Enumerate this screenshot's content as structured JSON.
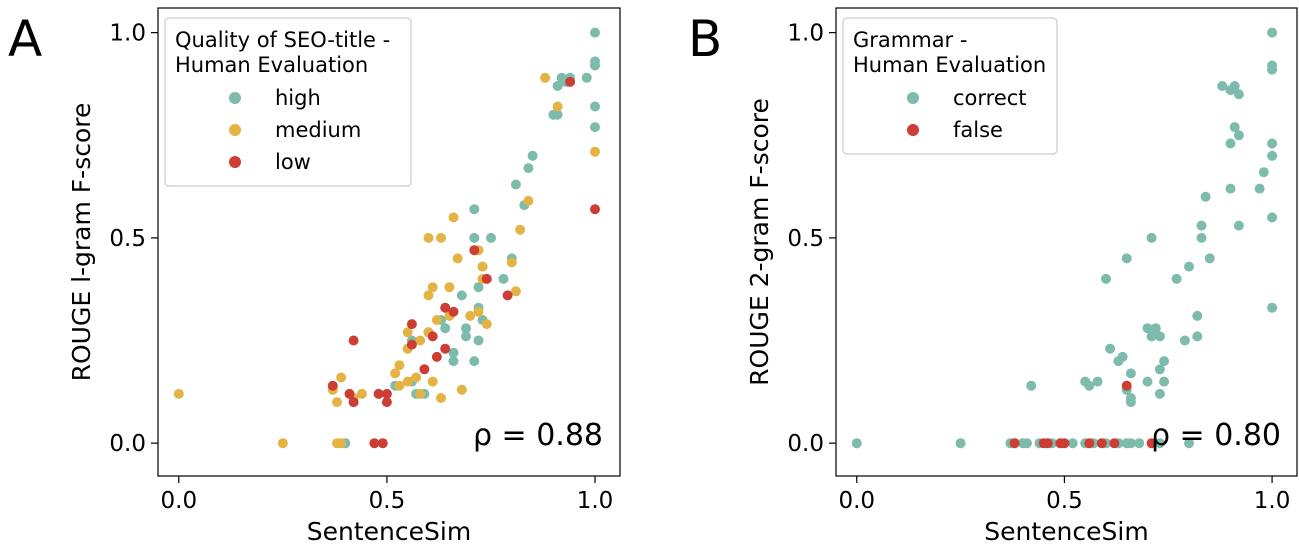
{
  "chart_data": [
    {
      "panel_label": "A",
      "type": "scatter",
      "xlabel": "SentenceSim",
      "ylabel": "ROUGE l-gram F-score",
      "xlim": [
        -0.05,
        1.06
      ],
      "ylim": [
        -0.08,
        1.06
      ],
      "xticks": [
        "0.0",
        "0.5",
        "1.0"
      ],
      "yticks": [
        "0.0",
        "0.5",
        "1.0"
      ],
      "grid": false,
      "legend_title": "Quality of SEO-title -\nHuman Evaluation",
      "legend_position": "top-left",
      "annotation": "ρ = 0.88",
      "series": [
        {
          "name": "high",
          "color": "#7dbbad",
          "points": [
            [
              1.0,
              1.0
            ],
            [
              1.0,
              0.93
            ],
            [
              1.0,
              0.92
            ],
            [
              0.98,
              0.89
            ],
            [
              0.94,
              0.89
            ],
            [
              0.93,
              0.88
            ],
            [
              0.92,
              0.89
            ],
            [
              0.91,
              0.87
            ],
            [
              1.0,
              0.82
            ],
            [
              0.9,
              0.8
            ],
            [
              0.91,
              0.8
            ],
            [
              1.0,
              0.77
            ],
            [
              0.85,
              0.7
            ],
            [
              0.84,
              0.67
            ],
            [
              0.81,
              0.63
            ],
            [
              0.83,
              0.58
            ],
            [
              0.71,
              0.57
            ],
            [
              0.71,
              0.5
            ],
            [
              0.75,
              0.5
            ],
            [
              0.8,
              0.45
            ],
            [
              0.73,
              0.43
            ],
            [
              0.78,
              0.4
            ],
            [
              0.72,
              0.38
            ],
            [
              0.68,
              0.36
            ],
            [
              0.72,
              0.33
            ],
            [
              0.73,
              0.3
            ],
            [
              0.63,
              0.3
            ],
            [
              0.69,
              0.28
            ],
            [
              0.64,
              0.28
            ],
            [
              0.6,
              0.27
            ],
            [
              0.56,
              0.25
            ],
            [
              0.69,
              0.26
            ],
            [
              0.72,
              0.25
            ],
            [
              0.66,
              0.22
            ],
            [
              0.71,
              0.2
            ],
            [
              0.66,
              0.2
            ],
            [
              0.52,
              0.14
            ],
            [
              0.56,
              0.15
            ],
            [
              0.59,
              0.12
            ],
            [
              0.57,
              0.12
            ],
            [
              0.4,
              0.0
            ]
          ]
        },
        {
          "name": "medium",
          "color": "#e3b444",
          "points": [
            [
              0.88,
              0.89
            ],
            [
              0.91,
              0.82
            ],
            [
              1.0,
              0.71
            ],
            [
              0.84,
              0.59
            ],
            [
              0.66,
              0.55
            ],
            [
              0.82,
              0.52
            ],
            [
              0.6,
              0.5
            ],
            [
              0.63,
              0.5
            ],
            [
              0.72,
              0.47
            ],
            [
              0.67,
              0.45
            ],
            [
              0.73,
              0.43
            ],
            [
              0.8,
              0.44
            ],
            [
              0.73,
              0.4
            ],
            [
              0.61,
              0.38
            ],
            [
              0.65,
              0.38
            ],
            [
              0.81,
              0.37
            ],
            [
              0.6,
              0.36
            ],
            [
              0.72,
              0.32
            ],
            [
              0.62,
              0.3
            ],
            [
              0.65,
              0.31
            ],
            [
              0.7,
              0.31
            ],
            [
              0.74,
              0.29
            ],
            [
              0.55,
              0.27
            ],
            [
              0.6,
              0.27
            ],
            [
              0.58,
              0.25
            ],
            [
              0.55,
              0.23
            ],
            [
              0.53,
              0.19
            ],
            [
              0.52,
              0.17
            ],
            [
              0.39,
              0.16
            ],
            [
              0.57,
              0.16
            ],
            [
              0.55,
              0.15
            ],
            [
              0.53,
              0.14
            ],
            [
              0.61,
              0.15
            ],
            [
              0.37,
              0.13
            ],
            [
              0.44,
              0.12
            ],
            [
              0.58,
              0.12
            ],
            [
              0.0,
              0.12
            ],
            [
              0.42,
              0.11
            ],
            [
              0.68,
              0.13
            ],
            [
              0.63,
              0.11
            ],
            [
              0.38,
              0.1
            ],
            [
              0.25,
              0.0
            ],
            [
              0.38,
              0.0
            ],
            [
              0.39,
              0.0
            ]
          ]
        },
        {
          "name": "low",
          "color": "#cc3d33",
          "points": [
            [
              0.94,
              0.88
            ],
            [
              1.0,
              0.57
            ],
            [
              0.71,
              0.47
            ],
            [
              0.74,
              0.4
            ],
            [
              0.79,
              0.36
            ],
            [
              0.64,
              0.33
            ],
            [
              0.56,
              0.29
            ],
            [
              0.66,
              0.32
            ],
            [
              0.61,
              0.26
            ],
            [
              0.56,
              0.24
            ],
            [
              0.42,
              0.25
            ],
            [
              0.64,
              0.23
            ],
            [
              0.62,
              0.21
            ],
            [
              0.59,
              0.18
            ],
            [
              0.37,
              0.14
            ],
            [
              0.41,
              0.12
            ],
            [
              0.5,
              0.12
            ],
            [
              0.48,
              0.12
            ],
            [
              0.42,
              0.1
            ],
            [
              0.5,
              0.1
            ],
            [
              0.47,
              0.0
            ],
            [
              0.49,
              0.0
            ]
          ]
        }
      ]
    },
    {
      "panel_label": "B",
      "type": "scatter",
      "xlabel": "SentenceSim",
      "ylabel": "ROUGE 2-gram F-score",
      "xlim": [
        -0.05,
        1.06
      ],
      "ylim": [
        -0.08,
        1.06
      ],
      "xticks": [
        "0.0",
        "0.5",
        "1.0"
      ],
      "yticks": [
        "0.0",
        "0.5",
        "1.0"
      ],
      "grid": false,
      "legend_title": "Grammar -\nHuman Evaluation",
      "legend_position": "top-left",
      "annotation": "ρ = 0.80",
      "series": [
        {
          "name": "correct",
          "color": "#7dbbad",
          "points": [
            [
              1.0,
              1.0
            ],
            [
              1.0,
              0.92
            ],
            [
              1.0,
              0.91
            ],
            [
              0.88,
              0.87
            ],
            [
              0.91,
              0.87
            ],
            [
              0.92,
              0.85
            ],
            [
              0.9,
              0.86
            ],
            [
              0.91,
              0.77
            ],
            [
              0.92,
              0.75
            ],
            [
              0.9,
              0.73
            ],
            [
              1.0,
              0.73
            ],
            [
              1.0,
              0.7
            ],
            [
              0.98,
              0.66
            ],
            [
              0.97,
              0.62
            ],
            [
              0.9,
              0.62
            ],
            [
              0.84,
              0.6
            ],
            [
              0.83,
              0.53
            ],
            [
              0.92,
              0.53
            ],
            [
              1.0,
              0.55
            ],
            [
              0.71,
              0.5
            ],
            [
              0.83,
              0.5
            ],
            [
              0.65,
              0.45
            ],
            [
              0.85,
              0.45
            ],
            [
              0.8,
              0.43
            ],
            [
              0.77,
              0.4
            ],
            [
              0.6,
              0.4
            ],
            [
              1.0,
              0.33
            ],
            [
              0.82,
              0.31
            ],
            [
              0.7,
              0.28
            ],
            [
              0.72,
              0.28
            ],
            [
              0.71,
              0.26
            ],
            [
              0.73,
              0.26
            ],
            [
              0.82,
              0.26
            ],
            [
              0.79,
              0.25
            ],
            [
              0.61,
              0.23
            ],
            [
              0.64,
              0.21
            ],
            [
              0.63,
              0.2
            ],
            [
              0.66,
              0.17
            ],
            [
              0.74,
              0.2
            ],
            [
              0.73,
              0.18
            ],
            [
              0.74,
              0.15
            ],
            [
              0.7,
              0.15
            ],
            [
              0.73,
              0.12
            ],
            [
              0.55,
              0.15
            ],
            [
              0.56,
              0.14
            ],
            [
              0.58,
              0.15
            ],
            [
              0.65,
              0.13
            ],
            [
              0.66,
              0.11
            ],
            [
              0.66,
              0.1
            ],
            [
              0.42,
              0.14
            ],
            [
              0.0,
              0.0
            ],
            [
              0.25,
              0.0
            ],
            [
              0.37,
              0.0
            ],
            [
              0.4,
              0.0
            ],
            [
              0.41,
              0.0
            ],
            [
              0.44,
              0.0
            ],
            [
              0.47,
              0.0
            ],
            [
              0.52,
              0.0
            ],
            [
              0.55,
              0.0
            ],
            [
              0.57,
              0.0
            ],
            [
              0.6,
              0.0
            ],
            [
              0.63,
              0.0
            ],
            [
              0.65,
              0.0
            ],
            [
              0.66,
              0.0
            ],
            [
              0.68,
              0.0
            ],
            [
              0.73,
              0.0
            ],
            [
              0.8,
              0.0
            ]
          ]
        },
        {
          "name": "false",
          "color": "#cc3d33",
          "points": [
            [
              0.65,
              0.14
            ],
            [
              0.38,
              0.0
            ],
            [
              0.45,
              0.0
            ],
            [
              0.46,
              0.0
            ],
            [
              0.49,
              0.0
            ],
            [
              0.5,
              0.0
            ],
            [
              0.56,
              0.0
            ],
            [
              0.59,
              0.0
            ],
            [
              0.62,
              0.0
            ],
            [
              0.71,
              0.0
            ]
          ]
        }
      ]
    }
  ]
}
